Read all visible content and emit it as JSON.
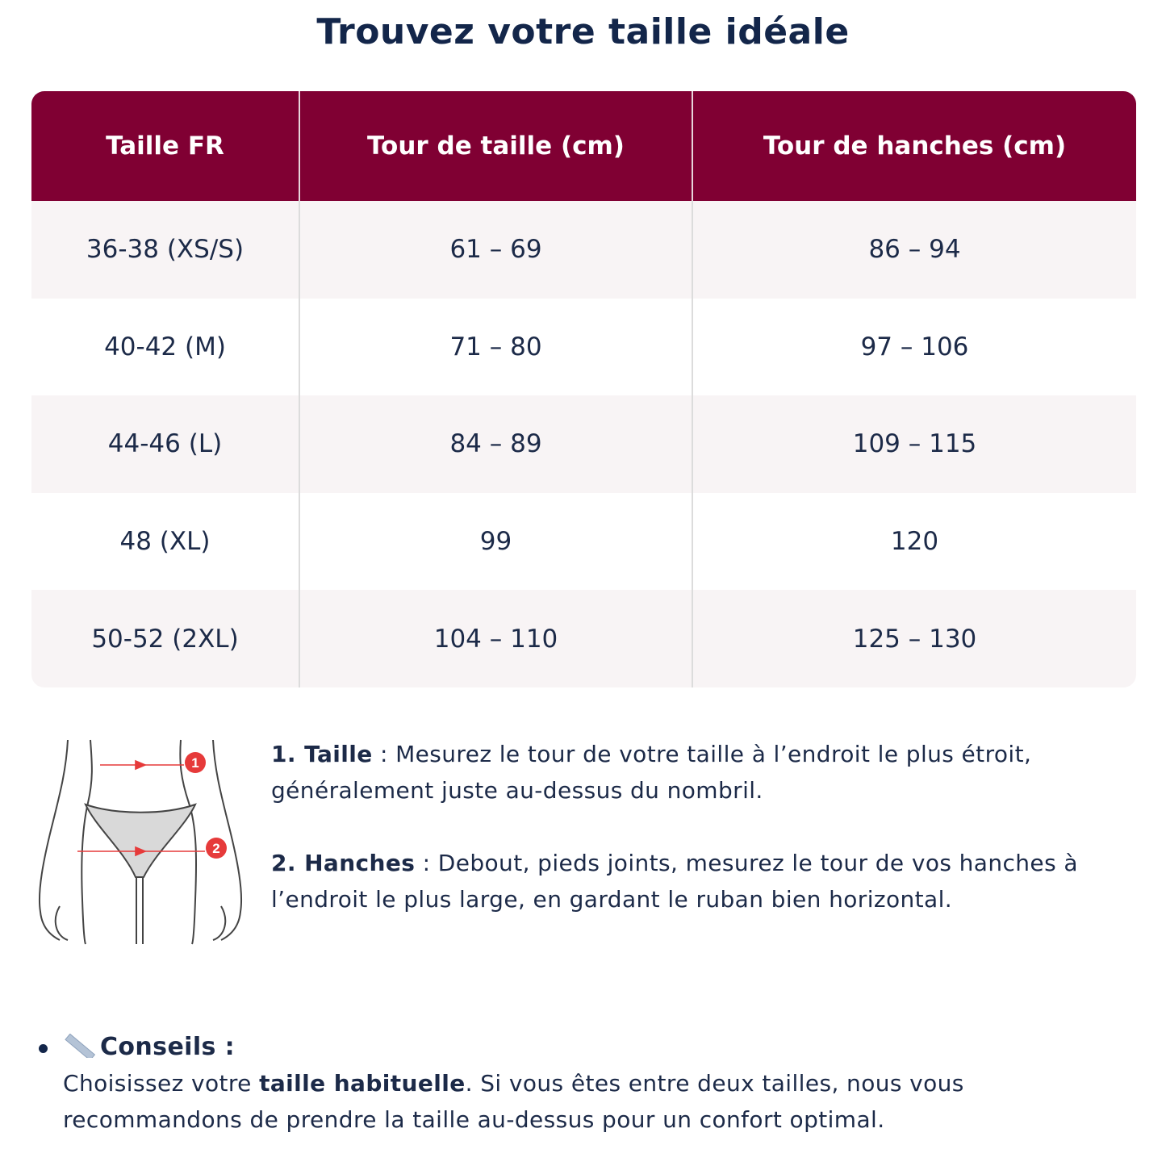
{
  "title": "Trouvez votre taille idéale",
  "table": {
    "headers": [
      "Taille FR",
      "Tour de taille (cm)",
      "Tour de hanches (cm)"
    ],
    "rows": [
      [
        "36-38 (XS/S)",
        "61 – 69",
        "86 – 94"
      ],
      [
        "40-42 (M)",
        "71 – 80",
        "97 – 106"
      ],
      [
        "44-46 (L)",
        "84 – 89",
        "109 – 115"
      ],
      [
        "48 (XL)",
        "99",
        "120"
      ],
      [
        "50-52 (2XL)",
        "104 – 110",
        "125 – 130"
      ]
    ]
  },
  "colors": {
    "header_bg": "#800033",
    "stripe_bg": "#f8f4f5",
    "text": "#1c2a48",
    "marker": "#e63a3a"
  },
  "figure": {
    "markers": [
      "1",
      "2"
    ]
  },
  "steps": [
    {
      "label": "1. Taille",
      "sep": " : ",
      "text": "Mesurez le tour de votre taille à l’endroit le plus étroit, généralement juste au-dessus du nombril."
    },
    {
      "label": "2. Hanches",
      "sep": " : ",
      "text": "Debout, pieds joints, mesurez le tour de vos hanches à l’endroit le plus large, en gardant le ruban bien horizontal."
    }
  ],
  "tips": {
    "icon": "ruler-icon",
    "heading": "Conseils :",
    "text_before": "Choisissez votre ",
    "bold": "taille habituelle",
    "text_after": ". Si vous êtes entre deux tailles, nous vous recommandons de prendre la taille au-dessus pour un confort optimal."
  }
}
